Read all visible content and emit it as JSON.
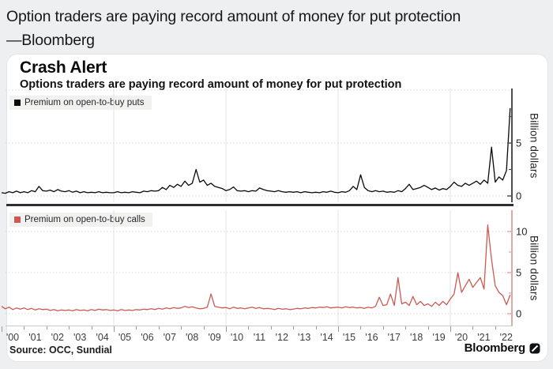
{
  "page": {
    "headline_line1": "Option traders are paying record amount of money for put protection",
    "headline_line2": "—Bloomberg"
  },
  "card": {
    "title": "Crash Alert",
    "subtitle": "Options traders are paying record amount of money for put protection",
    "source": "Source: OCC, Sundial",
    "brand": "Bloomberg",
    "brand_mark": "bloomberg-terminal-logo-icon"
  },
  "colors": {
    "puts_line": "#0a0a0a",
    "calls_line": "#cd5a52",
    "puts_axis": "#4d4f53",
    "calls_axis": "#e2a8a3",
    "page_bg": "#edeff1",
    "card_bg": "#ffffff"
  },
  "x_axis": {
    "tick_labels": [
      "'00",
      "'01",
      "'02",
      "'03",
      "'04",
      "'05",
      "'06",
      "'07",
      "'08",
      "'09",
      "'10",
      "'11",
      "'12",
      "'13",
      "'14",
      "'15",
      "'16",
      "'17",
      "'18",
      "'19",
      "'20",
      "'21",
      "'22"
    ],
    "gridline_years": [
      5,
      10,
      15,
      20
    ]
  },
  "chart_data": [
    {
      "type": "line",
      "name": "puts",
      "legend": "Premium on open-to-buy puts",
      "color": "#0a0a0a",
      "axis_color": "#4d4f53",
      "ylabel": "Billion dollars",
      "units": "billion USD",
      "ylim": [
        -0.6,
        10.15
      ],
      "yticks": [
        0,
        5
      ],
      "ytick_minor": [
        2.5,
        7.5
      ],
      "gridlines_y": [
        0,
        5,
        10
      ],
      "x_range": [
        2000,
        2022.67
      ],
      "x_note": "values sampled every 2 months from Jan 2000; final point ~Sep 2022 record spike",
      "values": [
        0.3,
        0.25,
        0.4,
        0.3,
        0.45,
        0.3,
        0.4,
        0.3,
        0.5,
        0.4,
        0.9,
        0.5,
        0.45,
        0.55,
        0.4,
        0.6,
        0.45,
        0.4,
        0.5,
        0.35,
        0.45,
        0.3,
        0.4,
        0.3,
        0.35,
        0.3,
        0.4,
        0.3,
        0.35,
        0.3,
        0.3,
        0.4,
        0.3,
        0.35,
        0.3,
        0.4,
        0.35,
        0.3,
        0.45,
        0.4,
        0.5,
        0.45,
        0.5,
        0.8,
        0.6,
        1.0,
        0.8,
        1.1,
        0.9,
        1.4,
        1.0,
        1.2,
        2.5,
        1.3,
        1.5,
        1.0,
        1.2,
        0.9,
        0.8,
        0.7,
        0.5,
        0.6,
        0.85,
        0.5,
        0.45,
        0.5,
        0.4,
        0.5,
        0.45,
        0.75,
        0.6,
        0.5,
        0.45,
        0.4,
        0.5,
        0.4,
        0.35,
        0.4,
        0.35,
        0.4,
        0.3,
        0.4,
        0.35,
        0.3,
        0.35,
        0.3,
        0.4,
        0.35,
        0.45,
        0.35,
        0.3,
        0.4,
        0.35,
        0.5,
        0.9,
        0.6,
        2.0,
        0.8,
        0.5,
        0.4,
        0.5,
        0.4,
        0.45,
        0.35,
        0.4,
        0.35,
        0.5,
        0.4,
        0.7,
        1.1,
        0.6,
        0.7,
        0.8,
        1.0,
        0.8,
        0.6,
        0.75,
        0.55,
        0.7,
        0.6,
        0.9,
        1.3,
        1.0,
        0.9,
        1.2,
        1.0,
        1.2,
        1.4,
        1.1,
        1.5,
        1.2,
        4.6,
        1.3,
        1.8,
        1.5,
        2.4,
        8.3
      ]
    },
    {
      "type": "line",
      "name": "calls",
      "legend": "Premium on open-to-buy calls",
      "color": "#cd5a52",
      "axis_color": "#e2a8a3",
      "ylabel": "Billion dollars",
      "units": "billion USD",
      "ylim": [
        -1.44,
        12.6
      ],
      "yticks": [
        0,
        5,
        10
      ],
      "ytick_minor": [
        2.5,
        7.5
      ],
      "gridlines_y": [
        0,
        5,
        10
      ],
      "x_range": [
        2000,
        2022.67
      ],
      "x_note": "values sampled every 2 months from Jan 2000; peak ~10.8B in late 2021",
      "values": [
        0.9,
        0.6,
        0.8,
        0.5,
        0.7,
        0.55,
        0.7,
        0.5,
        0.65,
        0.45,
        0.6,
        0.5,
        0.55,
        0.4,
        0.5,
        0.35,
        0.45,
        0.4,
        0.45,
        0.35,
        0.5,
        0.4,
        0.45,
        0.35,
        0.5,
        0.4,
        0.55,
        0.45,
        0.5,
        0.4,
        0.45,
        0.35,
        0.5,
        0.4,
        0.45,
        0.4,
        0.5,
        0.45,
        0.55,
        0.5,
        0.6,
        0.5,
        0.65,
        0.55,
        0.7,
        0.6,
        0.75,
        0.65,
        0.7,
        0.9,
        0.75,
        0.85,
        0.7,
        0.6,
        0.65,
        0.8,
        2.4,
        0.9,
        0.8,
        0.7,
        0.75,
        0.6,
        0.8,
        0.65,
        0.7,
        0.6,
        0.7,
        0.8,
        0.65,
        0.75,
        0.6,
        0.65,
        0.6,
        0.5,
        0.65,
        0.55,
        0.6,
        0.5,
        0.55,
        0.65,
        0.6,
        0.7,
        0.65,
        0.75,
        0.7,
        0.8,
        0.75,
        0.85,
        0.7,
        0.75,
        0.8,
        0.7,
        0.85,
        0.75,
        0.8,
        0.7,
        0.75,
        0.65,
        0.8,
        0.7,
        0.9,
        2.0,
        1.0,
        1.1,
        2.4,
        1.0,
        4.4,
        1.2,
        1.4,
        1.0,
        2.1,
        1.1,
        1.5,
        1.0,
        1.2,
        0.9,
        1.4,
        1.0,
        1.5,
        1.1,
        1.8,
        2.4,
        5.0,
        2.6,
        3.4,
        4.2,
        3.2,
        3.8,
        4.4,
        3.0,
        10.8,
        6.6,
        3.4,
        2.6,
        2.2,
        1.1,
        2.3
      ]
    }
  ]
}
